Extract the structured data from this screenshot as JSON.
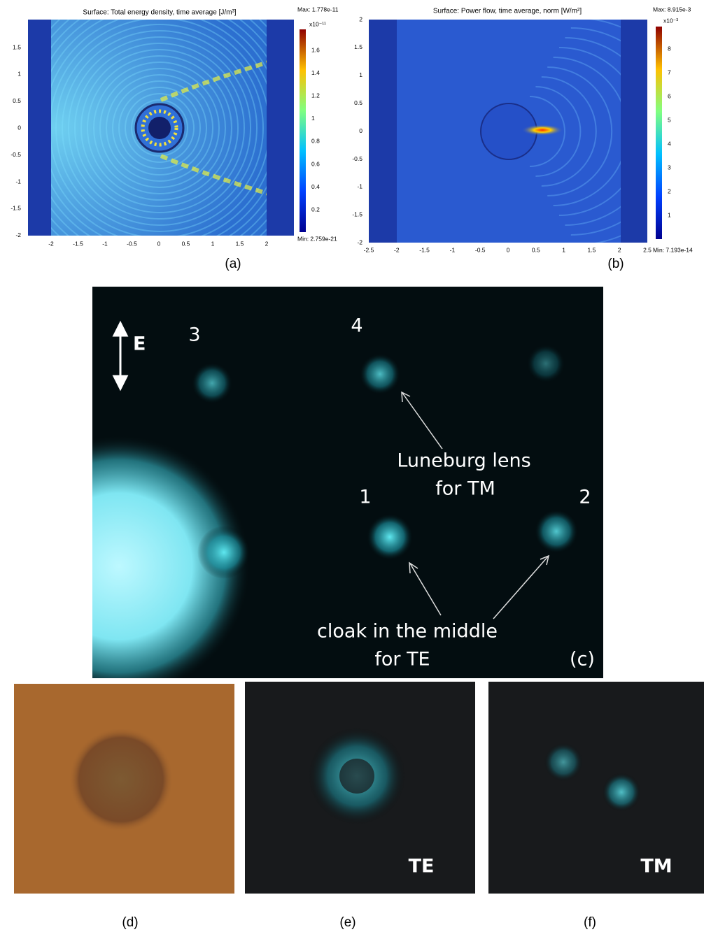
{
  "panel_a": {
    "title": "Surface: Total energy density, time average [J/m³]",
    "max": "Max: 1.778e-11",
    "min": "Min: 2.759e-21",
    "exponent": "x10⁻¹¹",
    "colorbar_ticks": [
      "1.6",
      "1.4",
      "1.2",
      "1",
      "0.8",
      "0.6",
      "0.4",
      "0.2"
    ],
    "y_ticks": [
      "1.5",
      "1",
      "0.5",
      "0",
      "-0.5",
      "-1",
      "-1.5",
      "-2"
    ],
    "x_ticks": [
      "-2",
      "-1.5",
      "-1",
      "-0.5",
      "0",
      "0.5",
      "1",
      "1.5",
      "2"
    ],
    "caption": "(a)"
  },
  "panel_b": {
    "title": "Surface: Power flow, time average, norm [W/m²]",
    "max": "Max: 8.915e-3",
    "min": "Min: 7.193e-14",
    "exponent": "x10⁻³",
    "colorbar_ticks": [
      "8",
      "7",
      "6",
      "5",
      "4",
      "3",
      "2",
      "1"
    ],
    "y_ticks": [
      "2",
      "1.5",
      "1",
      "0.5",
      "0",
      "-0.5",
      "-1",
      "-1.5",
      "-2"
    ],
    "x_ticks": [
      "-2.5",
      "-2",
      "-1.5",
      "-1",
      "-0.5",
      "0",
      "0.5",
      "1",
      "1.5",
      "2",
      "2.5"
    ],
    "caption": "(b)"
  },
  "panel_c": {
    "field_label": "E",
    "spots": [
      "3",
      "4",
      "1",
      "2"
    ],
    "note_tm": [
      "Luneburg lens",
      "for TM"
    ],
    "note_te": [
      "cloak in the middle",
      "for TE"
    ],
    "caption": "(c)"
  },
  "panel_d": {
    "caption": "(d)"
  },
  "panel_e": {
    "label": "TE",
    "caption": "(e)"
  },
  "panel_f": {
    "label": "TM",
    "caption": "(f)"
  }
}
